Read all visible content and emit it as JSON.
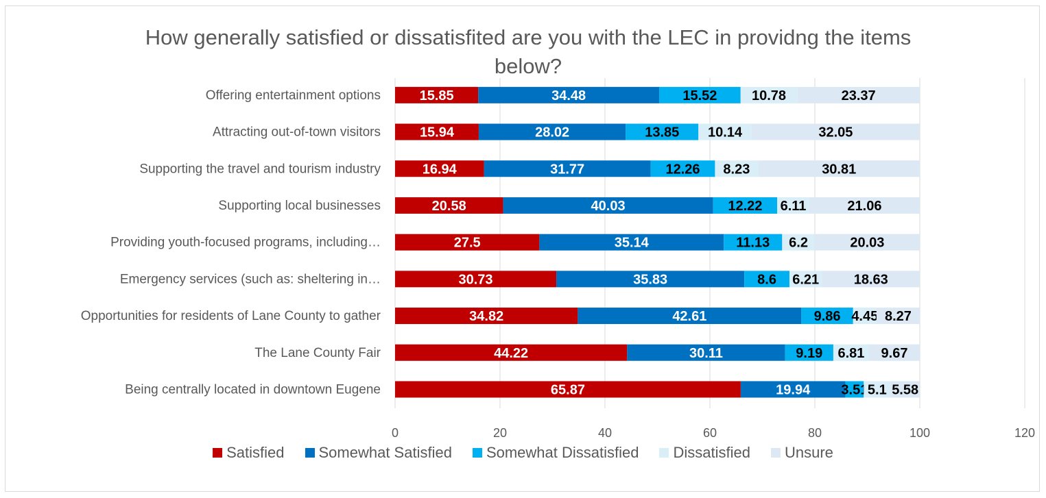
{
  "chart_data": {
    "type": "bar",
    "orientation": "horizontal",
    "stacked": true,
    "title": "How generally satisfied or dissatisfited are you with the LEC in providng the items below?",
    "categories": [
      "Offering entertainment options",
      "Attracting out-of-town visitors",
      "Supporting the travel and tourism industry",
      "Supporting local businesses",
      "Providing youth-focused programs, including…",
      "Emergency services (such as: sheltering in…",
      "Opportunities for residents of Lane County to gather",
      "The Lane County Fair",
      "Being centrally located in downtown Eugene"
    ],
    "series": [
      {
        "name": "Satisfied",
        "color": "#c00000",
        "label_color": "#ffffff",
        "values": [
          15.85,
          15.94,
          16.94,
          20.58,
          27.5,
          30.73,
          34.82,
          44.22,
          65.87
        ]
      },
      {
        "name": "Somewhat Satisfied",
        "color": "#0070c0",
        "label_color": "#ffffff",
        "values": [
          34.48,
          28.02,
          31.77,
          40.03,
          35.14,
          35.83,
          42.61,
          30.11,
          19.94
        ]
      },
      {
        "name": "Somewhat Dissatisfied",
        "color": "#00b0f0",
        "label_color": "#000000",
        "values": [
          15.52,
          13.85,
          12.26,
          12.22,
          11.13,
          8.6,
          9.86,
          9.19,
          3.51
        ]
      },
      {
        "name": "Dissatisfied",
        "color": "#daeef7",
        "label_color": "#000000",
        "values": [
          10.78,
          10.14,
          8.23,
          6.11,
          6.2,
          6.21,
          4.45,
          6.81,
          5.1
        ]
      },
      {
        "name": "Unsure",
        "color": "#dce9f5",
        "label_color": "#000000",
        "values": [
          23.37,
          32.05,
          30.81,
          21.06,
          20.03,
          18.63,
          8.27,
          9.67,
          5.58
        ]
      }
    ],
    "x_ticks": [
      "0",
      "20",
      "40",
      "60",
      "80",
      "100",
      "120"
    ],
    "xlim": [
      0,
      120
    ],
    "grid": true,
    "legend_position": "bottom"
  }
}
